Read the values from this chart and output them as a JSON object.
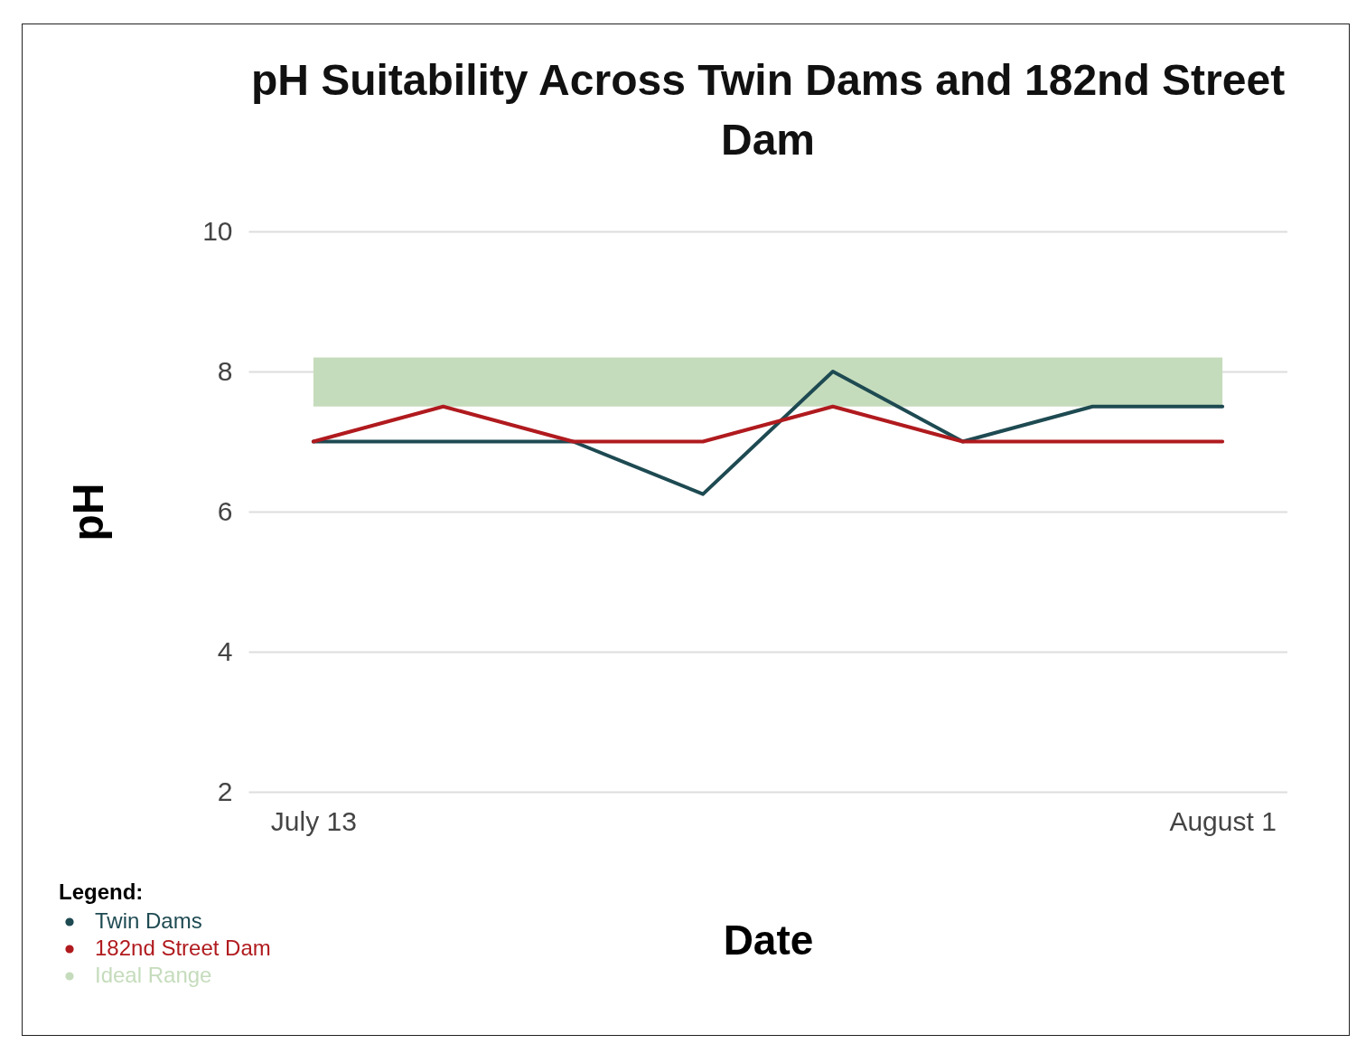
{
  "chart_data": {
    "type": "line",
    "title": [
      "pH Suitability Across Twin Dams and 182nd Street",
      "Dam"
    ],
    "xlabel": "Date",
    "ylabel": "pH",
    "legend_title": "Legend:",
    "categories": [
      "July 13",
      null,
      null,
      null,
      null,
      null,
      null,
      "August 1"
    ],
    "series": [
      {
        "name": "Twin Dams",
        "color": "#1e4a52",
        "values": [
          7,
          7,
          7,
          6.25,
          8,
          7,
          7.5,
          7.5
        ]
      },
      {
        "name": "182nd Street Dam",
        "color": "#b01a1e",
        "values": [
          7,
          7.5,
          7,
          7,
          7.5,
          7,
          7,
          7
        ]
      }
    ],
    "bands": [
      {
        "axis": "y",
        "from": 7.5,
        "to": 8.2,
        "label": "Ideal Range",
        "color": "#c5dcbc"
      }
    ],
    "ylim": [
      2,
      10
    ],
    "yticks": [
      2,
      4,
      6,
      8,
      10
    ],
    "grid": "y",
    "legend": "bottom left",
    "marker": "none",
    "line_style": "solid"
  }
}
